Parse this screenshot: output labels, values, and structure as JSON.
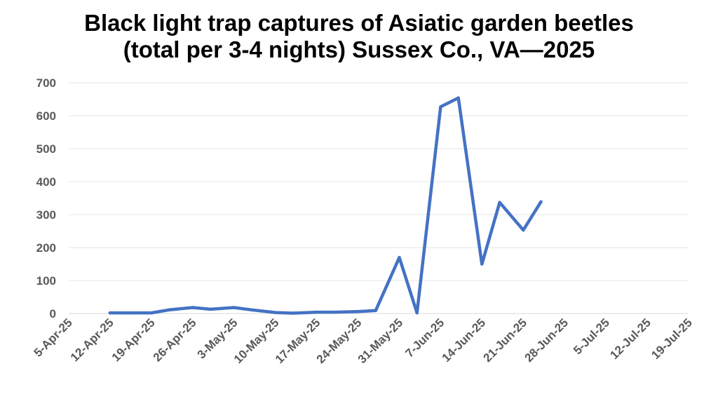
{
  "chart_data": {
    "type": "line",
    "title_line1": "Black light trap captures of Asiatic garden beetles",
    "title_line2": "(total per 3-4 nights) Sussex Co., VA—2025",
    "xlabel": "",
    "ylabel": "",
    "ylim": [
      0,
      700
    ],
    "y_ticks": [
      "0",
      "100",
      "200",
      "300",
      "400",
      "500",
      "600",
      "700"
    ],
    "x_tick_labels": [
      "5-Apr-25",
      "12-Apr-25",
      "19-Apr-25",
      "26-Apr-25",
      "3-May-25",
      "10-May-25",
      "17-May-25",
      "24-May-25",
      "31-May-25",
      "7-Jun-25",
      "14-Jun-25",
      "21-Jun-25",
      "28-Jun-25",
      "5-Jul-25",
      "12-Jul-25",
      "19-Jul-25"
    ],
    "x_start": "2025-04-05",
    "x_end": "2025-07-19",
    "grid": true,
    "series": [
      {
        "color": "#4472C4",
        "points": [
          {
            "x": "2025-04-12",
            "y": 2
          },
          {
            "x": "2025-04-15",
            "y": 2
          },
          {
            "x": "2025-04-19",
            "y": 2
          },
          {
            "x": "2025-04-22",
            "y": 11
          },
          {
            "x": "2025-04-26",
            "y": 18
          },
          {
            "x": "2025-04-29",
            "y": 13
          },
          {
            "x": "2025-05-03",
            "y": 18
          },
          {
            "x": "2025-05-06",
            "y": 11
          },
          {
            "x": "2025-05-10",
            "y": 3
          },
          {
            "x": "2025-05-13",
            "y": 1
          },
          {
            "x": "2025-05-17",
            "y": 4
          },
          {
            "x": "2025-05-20",
            "y": 4
          },
          {
            "x": "2025-05-24",
            "y": 6
          },
          {
            "x": "2025-05-27",
            "y": 9
          },
          {
            "x": "2025-05-31",
            "y": 170
          },
          {
            "x": "2025-06-03",
            "y": 2
          },
          {
            "x": "2025-06-07",
            "y": 627
          },
          {
            "x": "2025-06-10",
            "y": 654
          },
          {
            "x": "2025-06-14",
            "y": 150
          },
          {
            "x": "2025-06-17",
            "y": 337
          },
          {
            "x": "2025-06-21",
            "y": 253
          },
          {
            "x": "2025-06-24",
            "y": 339
          }
        ]
      }
    ]
  }
}
